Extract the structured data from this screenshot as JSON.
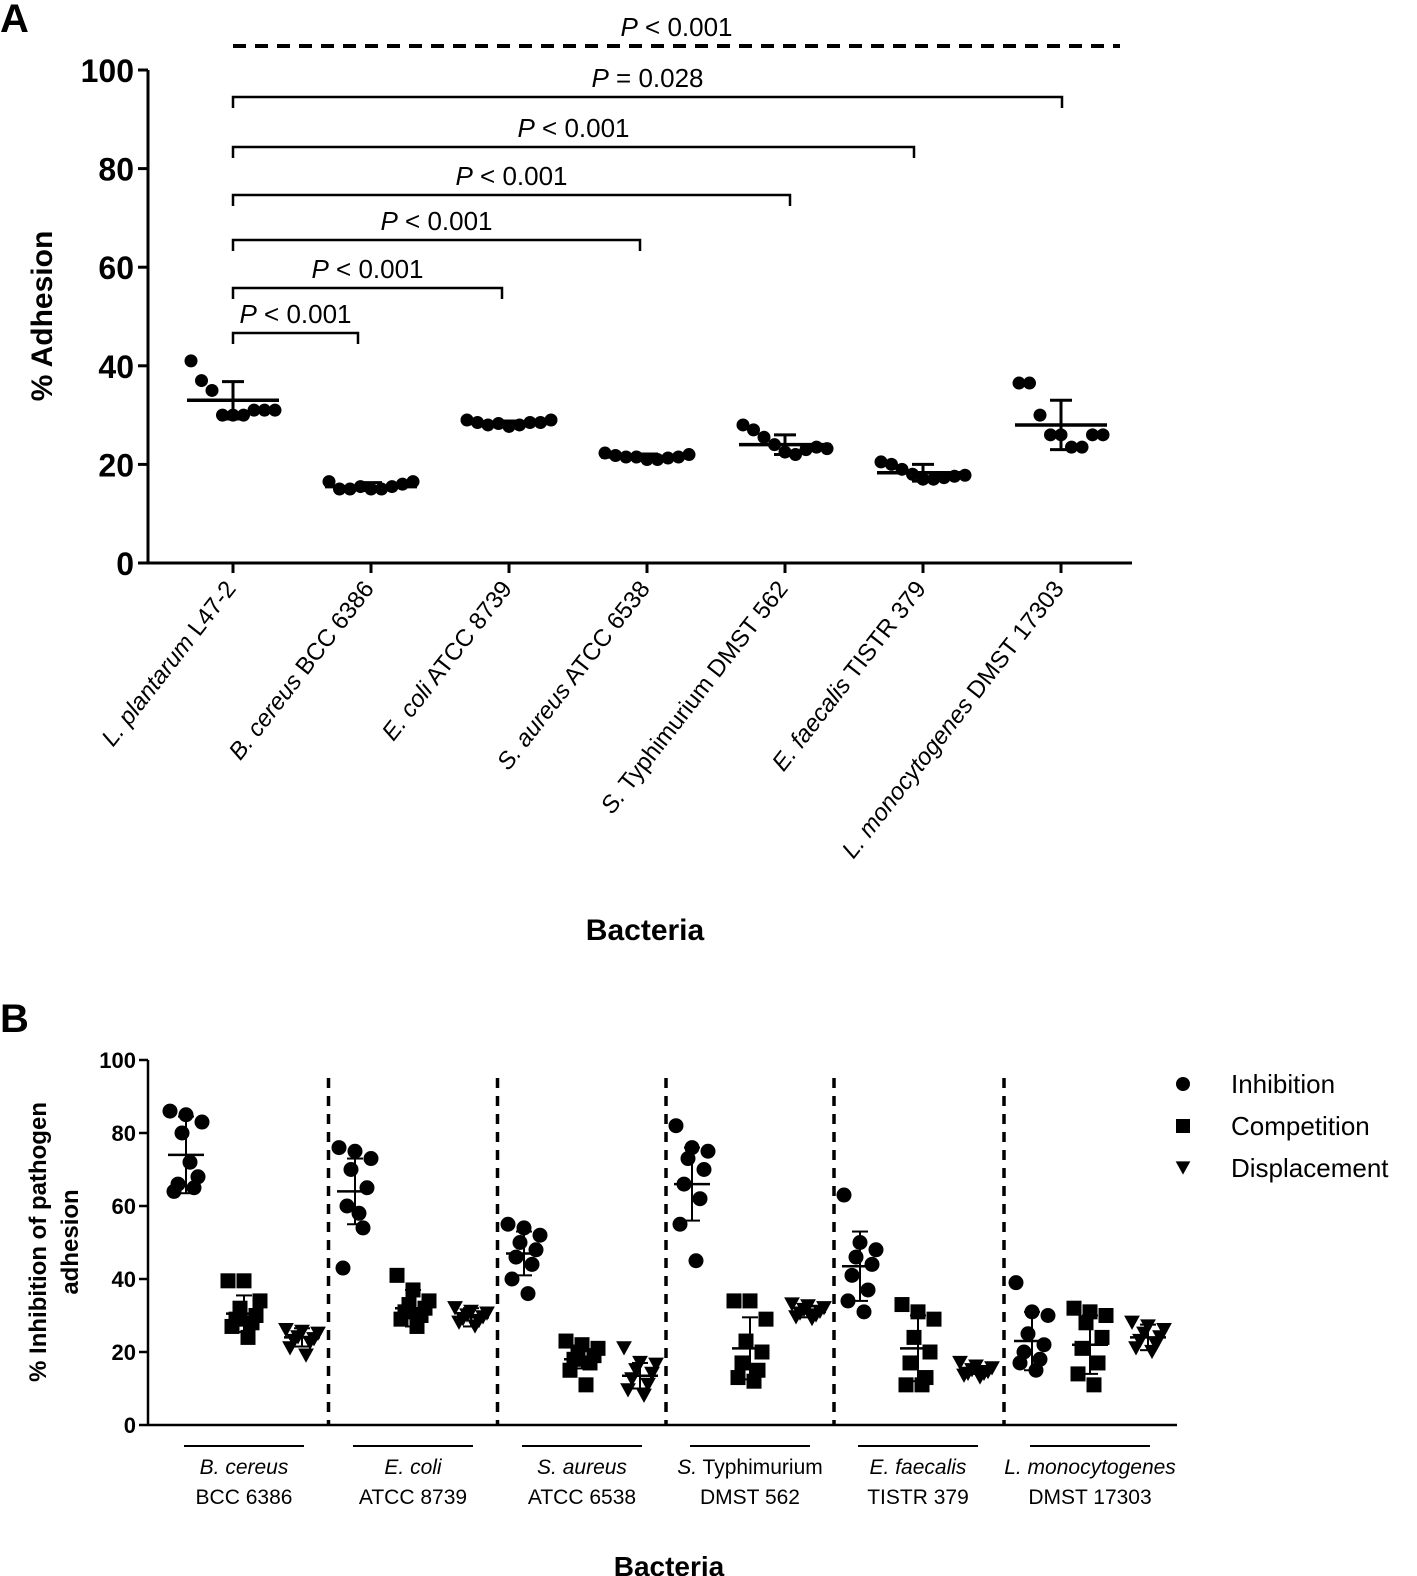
{
  "chart_data": [
    {
      "panel_label": "A",
      "type": "scatter",
      "subtype": "dot-plot with mean and SD",
      "ylabel": "% Adhesion",
      "xlabel": "Bacteria",
      "ylim": [
        0,
        100
      ],
      "yticks": [
        0,
        20,
        40,
        60,
        80,
        100
      ],
      "grid": false,
      "legend": "none",
      "marker": "circle",
      "color": "#000000",
      "categories": [
        {
          "italic": "L. plantarum",
          "plain": " L47-2"
        },
        {
          "italic": "B. cereus",
          "plain": " BCC 6386"
        },
        {
          "italic": "E. coli",
          "plain": " ATCC 8739"
        },
        {
          "italic": "S. aureus",
          "plain": " ATCC 6538"
        },
        {
          "italic": "S.",
          "plain": " Typhimurium DMST 562"
        },
        {
          "italic": "E. faecalis",
          "plain": " TISTR 379"
        },
        {
          "italic": "L. monocytogenes",
          "plain": " DMST 17303"
        }
      ],
      "means": [
        33,
        15.5,
        28.3,
        21.5,
        24,
        18.3,
        28
      ],
      "sd": [
        3.8,
        0.8,
        0.5,
        0.6,
        2,
        1.7,
        5
      ],
      "points": [
        [
          41,
          37,
          35,
          30,
          30,
          30,
          31,
          31,
          31
        ],
        [
          16.5,
          15,
          15,
          15.5,
          15,
          15,
          15.5,
          16,
          16.5
        ],
        [
          29,
          28.5,
          28,
          28.3,
          27.7,
          28,
          28.5,
          28.5,
          29
        ],
        [
          22.3,
          21.8,
          21.5,
          21.5,
          21,
          21,
          21.3,
          21.5,
          22
        ],
        [
          28,
          27,
          25.5,
          24,
          22.5,
          22,
          23,
          23.5,
          23.2
        ],
        [
          20.5,
          20,
          19,
          18,
          17,
          17,
          17.3,
          17.6,
          17.8
        ],
        [
          36.5,
          36.5,
          30,
          26,
          26,
          23.5,
          23.5,
          26,
          26
        ]
      ],
      "annotations": [
        {
          "italic": "P",
          "text": " < 0.001",
          "from": 0,
          "to": 1
        },
        {
          "italic": "P",
          "text": " < 0.001",
          "from": 0,
          "to": 2
        },
        {
          "italic": "P",
          "text": " < 0.001",
          "from": 0,
          "to": 3
        },
        {
          "italic": "P",
          "text": " < 0.001",
          "from": 0,
          "to": 4
        },
        {
          "italic": "P",
          "text": " < 0.001",
          "from": 0,
          "to": 5
        },
        {
          "italic": "P",
          "text": " = 0.028",
          "from": 0,
          "to": 6
        },
        {
          "italic": "P",
          "text": " < 0.001",
          "from": 0,
          "to": 6,
          "style": "dashed"
        }
      ]
    },
    {
      "panel_label": "B",
      "type": "scatter",
      "subtype": "grouped dot-plot with mean and SD",
      "ylabel_line1": "% Inhibition of pathogen",
      "ylabel_line2": "adhesion",
      "xlabel": "Bacteria",
      "ylim": [
        0,
        100
      ],
      "yticks": [
        0,
        20,
        40,
        60,
        80,
        100
      ],
      "grid": false,
      "legend": "top-right",
      "groups": [
        {
          "italic": "B. cereus",
          "plain_top": "",
          "bottom": "BCC 6386"
        },
        {
          "italic": "E. coli",
          "plain_top": "",
          "bottom": "ATCC 8739"
        },
        {
          "italic": "S. aureus",
          "plain_top": "",
          "bottom": "ATCC 6538"
        },
        {
          "italic": "S.",
          "plain_top": " Typhimurium",
          "bottom": "DMST 562"
        },
        {
          "italic": "E. faecalis",
          "plain_top": "",
          "bottom": "TISTR 379"
        },
        {
          "italic": "L. monocytogenes",
          "plain_top": "",
          "bottom": "DMST 17303"
        }
      ],
      "series": [
        {
          "name": "Inhibition",
          "marker": "circle",
          "means": [
            74,
            64,
            47,
            66,
            43.5,
            23
          ],
          "sd": [
            10.5,
            9,
            6,
            10,
            9.5,
            8
          ],
          "points": [
            [
              86,
              85,
              83,
              80,
              68,
              66,
              65,
              64,
              72
            ],
            [
              76,
              75,
              73,
              70,
              65,
              60,
              54,
              43,
              58
            ],
            [
              55,
              54,
              52,
              50,
              48,
              46,
              44,
              40,
              36
            ],
            [
              82,
              76,
              75,
              73,
              70,
              66,
              62,
              55,
              45
            ],
            [
              63,
              50,
              48,
              46,
              44,
              41,
              37,
              34,
              31
            ],
            [
              39,
              31,
              30,
              25,
              22,
              20,
              18,
              17,
              15
            ]
          ]
        },
        {
          "name": "Competition",
          "marker": "square",
          "means": [
            30.5,
            32,
            18,
            21,
            21,
            22
          ],
          "sd": [
            5,
            5,
            2.5,
            8.5,
            9,
            8
          ],
          "points": [
            [
              39.5,
              39.5,
              34,
              32,
              30,
              29,
              28,
              27,
              24
            ],
            [
              41,
              37,
              34,
              33,
              32,
              31,
              30,
              29,
              27
            ],
            [
              23,
              22,
              21,
              20,
              19,
              18,
              17,
              15,
              11
            ],
            [
              34,
              34,
              29,
              23,
              20,
              17,
              15,
              13,
              12
            ],
            [
              33,
              31,
              29,
              24,
              20,
              17,
              13,
              11,
              11
            ],
            [
              32,
              31,
              30,
              28,
              24,
              21,
              17,
              14,
              11
            ]
          ]
        },
        {
          "name": "Displacement",
          "marker": "triangle-down",
          "means": [
            24,
            29.5,
            13.5,
            31,
            15,
            24
          ],
          "sd": [
            2.5,
            2.5,
            3.5,
            1.5,
            1,
            3.5
          ],
          "points": [
            [
              26,
              25.5,
              25,
              24,
              23.5,
              23,
              22.5,
              21,
              19
            ],
            [
              32,
              31,
              30.5,
              30,
              29.5,
              29,
              28.5,
              28,
              27
            ],
            [
              21,
              17,
              16.5,
              15,
              14,
              12.5,
              11,
              9.5,
              8
            ],
            [
              33,
              32.5,
              32,
              31.5,
              31,
              30.5,
              30,
              29.5,
              29
            ],
            [
              17,
              16,
              15.5,
              15,
              14.5,
              14,
              14,
              13.5,
              13
            ],
            [
              28,
              27,
              26,
              25,
              24,
              23,
              22,
              21,
              20
            ]
          ]
        }
      ]
    }
  ]
}
